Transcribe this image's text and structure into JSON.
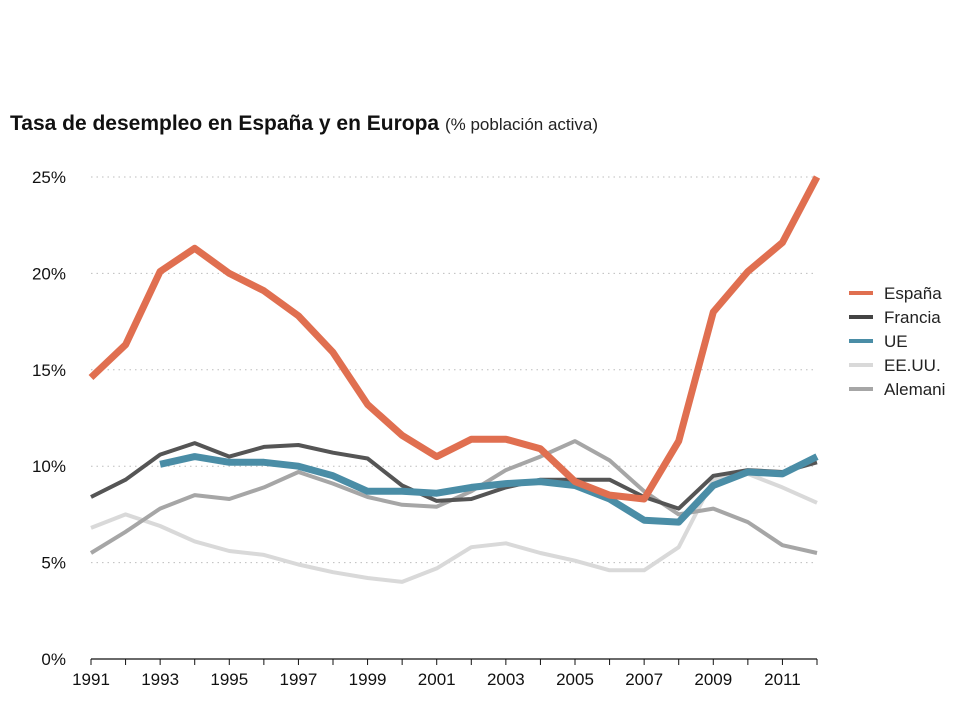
{
  "chart_data": {
    "type": "line",
    "title": "Tasa de desempleo en España y en Europa",
    "subtitle": "(% población activa)",
    "ylim": [
      0,
      25
    ],
    "y_ticks": [
      "0%",
      "5%",
      "10%",
      "15%",
      "20%",
      "25%"
    ],
    "y_tick_values": [
      0,
      5,
      10,
      15,
      20,
      25
    ],
    "x_ticks": [
      "1991",
      "1993",
      "1995",
      "1997",
      "1999",
      "2001",
      "2003",
      "2005",
      "2007",
      "2009",
      "2011"
    ],
    "x_tick_values": [
      1991,
      1993,
      1995,
      1997,
      1999,
      2001,
      2003,
      2005,
      2007,
      2009,
      2011
    ],
    "x": [
      1991,
      1992,
      1993,
      1994,
      1995,
      1996,
      1997,
      1998,
      1999,
      2000,
      2001,
      2002,
      2003,
      2004,
      2005,
      2006,
      2007,
      2008,
      2009,
      2010,
      2011,
      2012
    ],
    "grid": "horizontal dotted",
    "legend_position": "right",
    "series": [
      {
        "name": "EE.UU.",
        "color": "#d9d9d9",
        "width": 4,
        "values": [
          6.8,
          7.5,
          6.9,
          6.1,
          5.6,
          5.4,
          4.9,
          4.5,
          4.2,
          4.0,
          4.7,
          5.8,
          6.0,
          5.5,
          5.1,
          4.6,
          4.6,
          5.8,
          9.3,
          9.6,
          8.9,
          8.1
        ]
      },
      {
        "name": "Alemani",
        "color": "#a6a6a6",
        "width": 4,
        "values": [
          5.5,
          6.6,
          7.8,
          8.5,
          8.3,
          8.9,
          9.7,
          9.1,
          8.4,
          8.0,
          7.9,
          8.7,
          9.8,
          10.5,
          11.3,
          10.3,
          8.7,
          7.5,
          7.8,
          7.1,
          5.9,
          5.5
        ]
      },
      {
        "name": "Francia",
        "color": "#555555",
        "width": 4,
        "values": [
          8.4,
          9.3,
          10.6,
          11.2,
          10.5,
          11.0,
          11.1,
          10.7,
          10.4,
          9.0,
          8.2,
          8.3,
          8.9,
          9.3,
          9.3,
          9.3,
          8.4,
          7.8,
          9.5,
          9.8,
          9.7,
          10.2
        ]
      },
      {
        "name": "UE",
        "color": "#4a8da6",
        "width": 7,
        "values": [
          null,
          null,
          10.1,
          10.5,
          10.2,
          10.2,
          10.0,
          9.5,
          8.7,
          8.7,
          8.6,
          8.9,
          9.1,
          9.2,
          9.0,
          8.3,
          7.2,
          7.1,
          9.0,
          9.7,
          9.6,
          10.5
        ]
      },
      {
        "name": "España",
        "color": "#e06f50",
        "width": 7,
        "values": [
          14.6,
          16.3,
          20.1,
          21.3,
          20.0,
          19.1,
          17.8,
          15.9,
          13.2,
          11.6,
          10.5,
          11.4,
          11.4,
          10.9,
          9.2,
          8.5,
          8.3,
          11.3,
          18.0,
          20.1,
          21.6,
          25.0
        ]
      }
    ],
    "legend": [
      {
        "name": "España",
        "color": "#e06f50"
      },
      {
        "name": "Francia",
        "color": "#444444"
      },
      {
        "name": "UE",
        "color": "#4a8da6"
      },
      {
        "name": "EE.UU.",
        "color": "#d9d9d9"
      },
      {
        "name": "Alemani",
        "color": "#a6a6a6"
      }
    ]
  }
}
